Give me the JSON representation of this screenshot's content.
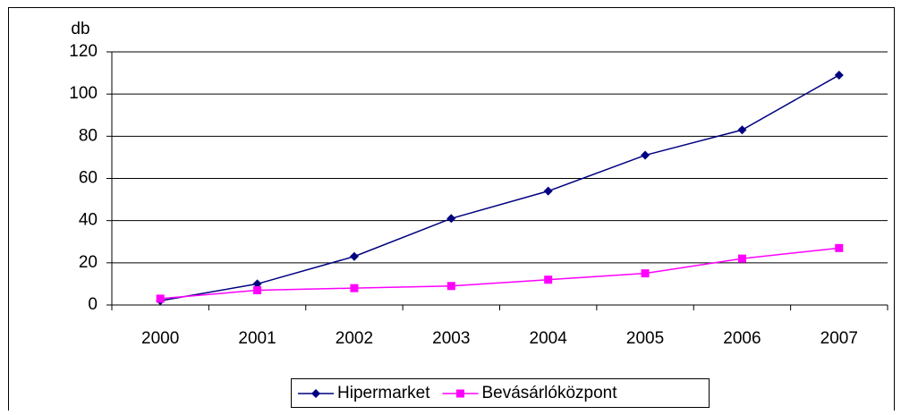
{
  "chart_data": {
    "type": "line",
    "y_label": "db",
    "categories": [
      "2000",
      "2001",
      "2002",
      "2003",
      "2004",
      "2005",
      "2006",
      "2007"
    ],
    "series": [
      {
        "name": "Hipermarket",
        "color": "#000080",
        "marker": "diamond",
        "values": [
          2,
          10,
          23,
          41,
          54,
          71,
          83,
          109
        ]
      },
      {
        "name": "Bevásárlóközpont",
        "color": "#ff00ff",
        "marker": "square",
        "values": [
          3,
          7,
          8,
          9,
          12,
          15,
          22,
          27
        ]
      }
    ],
    "ylim": [
      0,
      120
    ],
    "yticks": [
      0,
      20,
      40,
      60,
      80,
      100,
      120
    ],
    "grid": true,
    "legend": "bottom"
  }
}
